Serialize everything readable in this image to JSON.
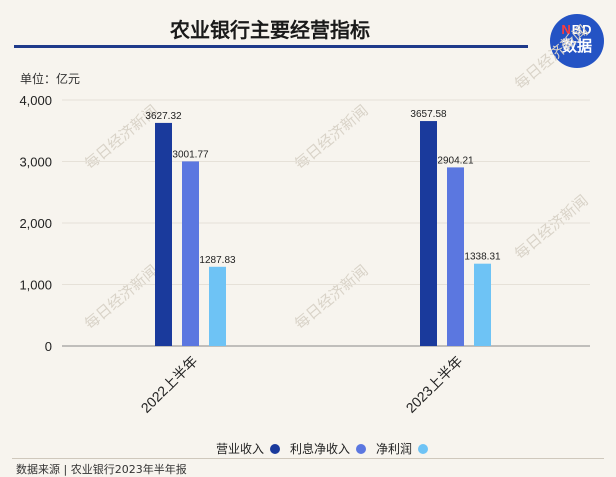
{
  "header": {
    "title": "农业银行主要经营指标"
  },
  "logo": {
    "line1_prefix": "N",
    "line1_rest": "BD",
    "line2": "数据"
  },
  "unit": "单位：亿元",
  "watermark": "每日经济新闻",
  "source": "数据来源 | 农业银行2023年半年报",
  "colors": {
    "revenue": "#1a3a9c",
    "net_interest": "#5b77e0",
    "net_profit": "#6ec3f5"
  },
  "chart_data": {
    "type": "bar",
    "title": "农业银行主要经营指标",
    "ylabel": "单位：亿元",
    "ylim": [
      0,
      4000
    ],
    "yticks": [
      "0",
      "1,000",
      "2,000",
      "3,000",
      "4,000"
    ],
    "categories": [
      "2022上半年",
      "2023上半年"
    ],
    "series": [
      {
        "name": "营业收入",
        "values": [
          3627.32,
          3657.58
        ],
        "labels": [
          "3627.32",
          "3657.58"
        ]
      },
      {
        "name": "利息净收入",
        "values": [
          3001.77,
          2904.21
        ],
        "labels": [
          "3001.77",
          "2904.21"
        ]
      },
      {
        "name": "净利润",
        "values": [
          1287.83,
          1338.31
        ],
        "labels": [
          "1287.83",
          "1338.31"
        ]
      }
    ],
    "legend": "bottom"
  }
}
